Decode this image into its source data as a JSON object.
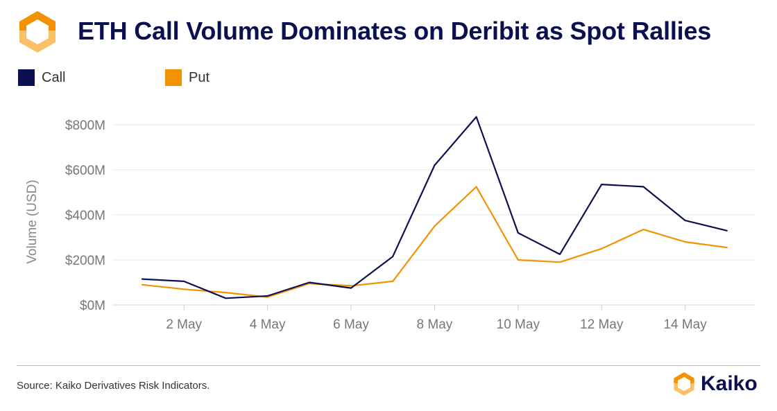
{
  "header": {
    "title": "ETH Call Volume Dominates on Deribit as Spot Rallies"
  },
  "colors": {
    "call": "#0b1050",
    "put": "#f39200",
    "logo_orange": "#f39200",
    "logo_light": "#fbbf66",
    "grid": "#e9e9e9"
  },
  "icons": {
    "logo": "kaiko-logo-icon",
    "brand": "kaiko-brand-icon"
  },
  "legend": {
    "items": [
      {
        "label": "Call",
        "color": "#0b1050"
      },
      {
        "label": "Put",
        "color": "#f39200"
      }
    ]
  },
  "footer": {
    "source": "Source: Kaiko Derivatives Risk Indicators.",
    "brand": "Kaiko"
  },
  "chart_data": {
    "type": "line",
    "ylabel": "Volume (USD)",
    "xlabel": "",
    "ylim": [
      0,
      800
    ],
    "yticks": [
      0,
      200,
      400,
      600,
      800
    ],
    "ytick_labels": [
      "$0M",
      "$200M",
      "$400M",
      "$600M",
      "$800M"
    ],
    "x": [
      "1 May",
      "2 May",
      "3 May",
      "4 May",
      "5 May",
      "6 May",
      "7 May",
      "8 May",
      "9 May",
      "10 May",
      "11 May",
      "12 May",
      "13 May",
      "14 May",
      "15 May"
    ],
    "xtick_labels": [
      "2 May",
      "4 May",
      "6 May",
      "8 May",
      "10 May",
      "12 May",
      "14 May"
    ],
    "grid": true,
    "legend_position": "top-left",
    "series": [
      {
        "name": "Call",
        "color": "#0b1050",
        "values": [
          115,
          105,
          30,
          40,
          100,
          75,
          215,
          620,
          835,
          320,
          225,
          535,
          525,
          375,
          330
        ]
      },
      {
        "name": "Put",
        "color": "#f39200",
        "values": [
          90,
          70,
          55,
          35,
          95,
          85,
          105,
          350,
          525,
          200,
          190,
          250,
          335,
          280,
          255
        ]
      }
    ]
  }
}
